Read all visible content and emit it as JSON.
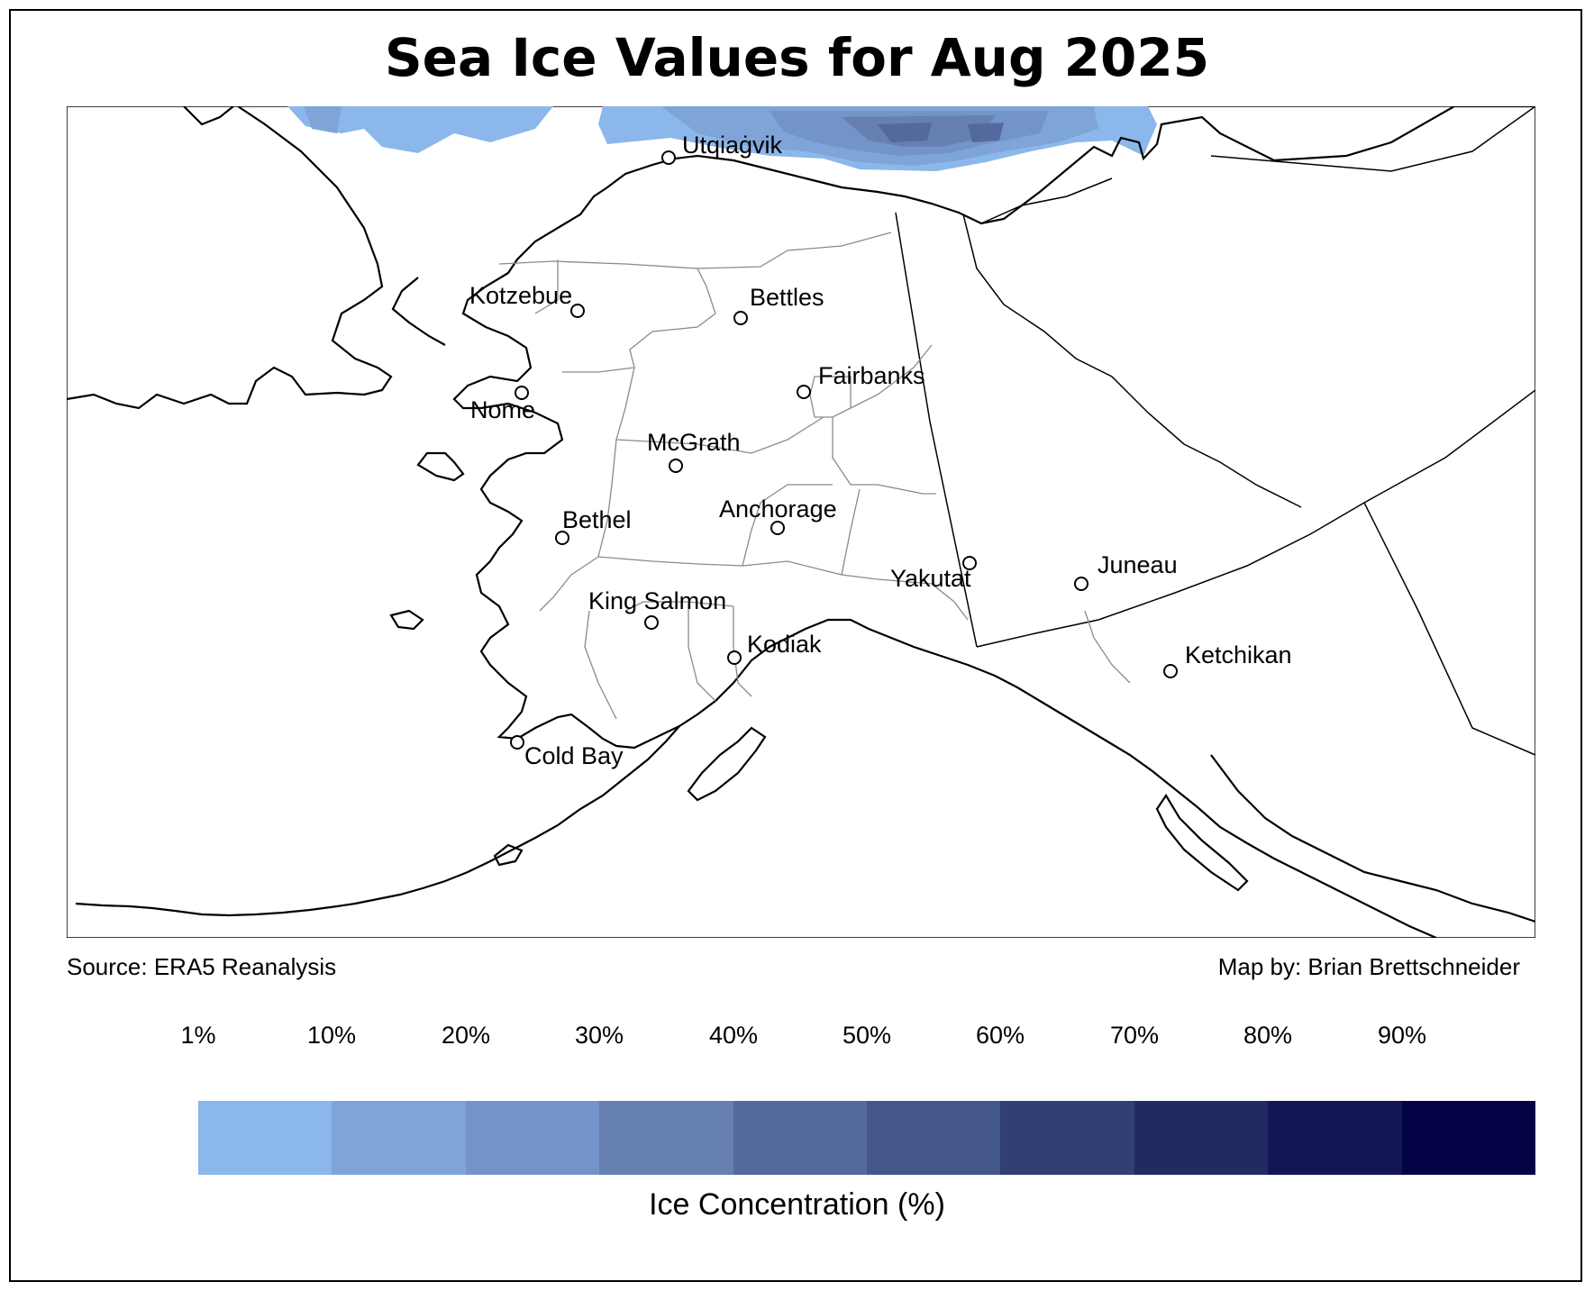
{
  "title": "Sea Ice Values for Aug 2025",
  "source": "Source: ERA5 Reanalysis",
  "credit": "Map by: Brian Brettschneider",
  "legend": {
    "title": "Ice Concentration (%)",
    "ticks": [
      "1%",
      "10%",
      "20%",
      "30%",
      "40%",
      "50%",
      "60%",
      "70%",
      "80%",
      "90%"
    ],
    "colors": [
      "#8bb7ea",
      "#7fa4d7",
      "#7394c9",
      "#6580b1",
      "#54699e",
      "#43578b",
      "#323f75",
      "#222a62",
      "#121654",
      "#030346"
    ]
  },
  "map": {
    "cities": [
      {
        "name": "Utqiaġvik"
      },
      {
        "name": "Kotzebue"
      },
      {
        "name": "Bettles"
      },
      {
        "name": "Nome"
      },
      {
        "name": "Fairbanks"
      },
      {
        "name": "McGrath"
      },
      {
        "name": "Bethel"
      },
      {
        "name": "Anchorage"
      },
      {
        "name": "Juneau"
      },
      {
        "name": "Yakutat"
      },
      {
        "name": "King Salmon"
      },
      {
        "name": "Kodiak"
      },
      {
        "name": "Ketchikan"
      },
      {
        "name": "Cold Bay"
      }
    ],
    "colors": {
      "border": "#000000",
      "census_lines": "#8a8a8a",
      "coast": "#000000"
    }
  }
}
